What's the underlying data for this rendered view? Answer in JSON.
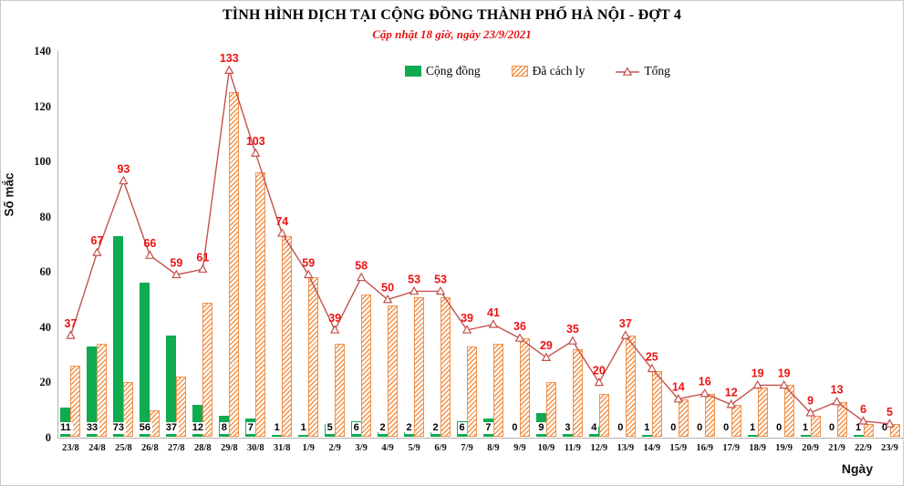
{
  "title": "TÌNH HÌNH DỊCH TẠI CỘNG ĐỒNG THÀNH PHỐ HÀ NỘI - ĐỢT 4",
  "subtitle": "Cập nhật 18 giờ, ngày 23/9/2021",
  "axes": {
    "y_title": "Số mắc",
    "x_title": "Ngày",
    "y_ticks": [
      0,
      20,
      40,
      60,
      80,
      100,
      120,
      140
    ]
  },
  "legend": [
    {
      "label": "Cộng đồng",
      "swatch": "community-bar"
    },
    {
      "label": "Đã cách ly",
      "swatch": "quarantined-bar"
    },
    {
      "label": "Tổng",
      "swatch": "total-line"
    }
  ],
  "colors": {
    "community_green": "#0fab51",
    "quarantine_orange": "#f2924a",
    "total_line_red": "#c3524e",
    "data_label_red": "#ee1111",
    "subtitle_red": "#e51313",
    "axis_gray": "#b3b3b3"
  },
  "chart_data": {
    "type": "bar",
    "subtype": "clustered-bars-plus-line-combo",
    "title": "TÌNH HÌNH DỊCH TẠI CỘNG ĐỒNG THÀNH PHỐ HÀ NỘI - ĐỢT 4",
    "xlabel": "Ngày",
    "ylabel": "Số mắc",
    "ylim": [
      0,
      140
    ],
    "grid": false,
    "legend_position": "top-center",
    "categories": [
      "23/8",
      "24/8",
      "25/8",
      "26/8",
      "27/8",
      "28/8",
      "29/8",
      "30/8",
      "31/8",
      "1/9",
      "2/9",
      "3/9",
      "4/9",
      "5/9",
      "6/9",
      "7/9",
      "8/9",
      "9/9",
      "10/9",
      "11/9",
      "12/9",
      "13/9",
      "14/9",
      "15/9",
      "16/9",
      "17/9",
      "18/9",
      "19/9",
      "20/9",
      "21/9",
      "22/9",
      "23/9"
    ],
    "series": [
      {
        "name": "Cộng đồng",
        "type": "bar",
        "style": "solid-green",
        "labels_shown": true,
        "values": [
          11,
          33,
          73,
          56,
          37,
          12,
          8,
          7,
          1,
          1,
          5,
          6,
          2,
          2,
          2,
          6,
          7,
          0,
          9,
          3,
          4,
          0,
          1,
          0,
          0,
          0,
          1,
          0,
          1,
          0,
          1,
          0
        ]
      },
      {
        "name": "Đã cách ly",
        "type": "bar",
        "style": "orange-diagonal-hatch",
        "labels_shown": false,
        "values": [
          26,
          34,
          20,
          10,
          22,
          49,
          125,
          96,
          73,
          58,
          34,
          52,
          48,
          51,
          51,
          33,
          34,
          36,
          20,
          32,
          16,
          37,
          24,
          14,
          16,
          12,
          18,
          19,
          8,
          13,
          5,
          5
        ]
      },
      {
        "name": "Tổng",
        "type": "line",
        "marker": "open-triangle",
        "labels_shown": true,
        "values": [
          37,
          67,
          93,
          66,
          59,
          61,
          133,
          103,
          74,
          59,
          39,
          58,
          50,
          53,
          53,
          39,
          41,
          36,
          29,
          35,
          20,
          37,
          25,
          14,
          16,
          12,
          19,
          19,
          9,
          13,
          6,
          5
        ]
      }
    ]
  }
}
